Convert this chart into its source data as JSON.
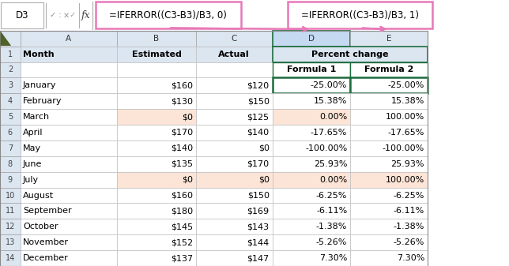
{
  "formula_bar_left": "=IFERROR((C3-B3)/B3, 0)",
  "formula_bar_right": "=IFERROR((C3-B3)/B3, 1)",
  "cell_ref": "D3",
  "months": [
    "January",
    "February",
    "March",
    "April",
    "May",
    "June",
    "July",
    "August",
    "September",
    "October",
    "November",
    "December"
  ],
  "estimated": [
    "$160",
    "$130",
    "$0",
    "$170",
    "$140",
    "$135",
    "$0",
    "$160",
    "$180",
    "$145",
    "$152",
    "$137"
  ],
  "actual": [
    "$120",
    "$150",
    "$125",
    "$140",
    "$0",
    "$170",
    "$0",
    "$150",
    "$169",
    "$143",
    "$144",
    "$147"
  ],
  "formula1": [
    "-25.00%",
    "15.38%",
    "0.00%",
    "-17.65%",
    "-100.00%",
    "25.93%",
    "0.00%",
    "-6.25%",
    "-6.11%",
    "-1.38%",
    "-5.26%",
    "7.30%"
  ],
  "formula2": [
    "-25.00%",
    "15.38%",
    "100.00%",
    "-17.65%",
    "-100.00%",
    "25.93%",
    "100.00%",
    "-6.25%",
    "-6.11%",
    "-1.38%",
    "-5.26%",
    "7.30%"
  ],
  "bg_color": "#ffffff",
  "header_bg": "#dce6f1",
  "highlight_bg": "#fce4d6",
  "selected_cell_border": "#1f6c3e",
  "formula_box_border": "#e879b8",
  "grid_color": "#c0c0c0",
  "col_header_highlight": "#c5d9f1",
  "figsize": [
    6.44,
    3.37
  ],
  "dpi": 100
}
